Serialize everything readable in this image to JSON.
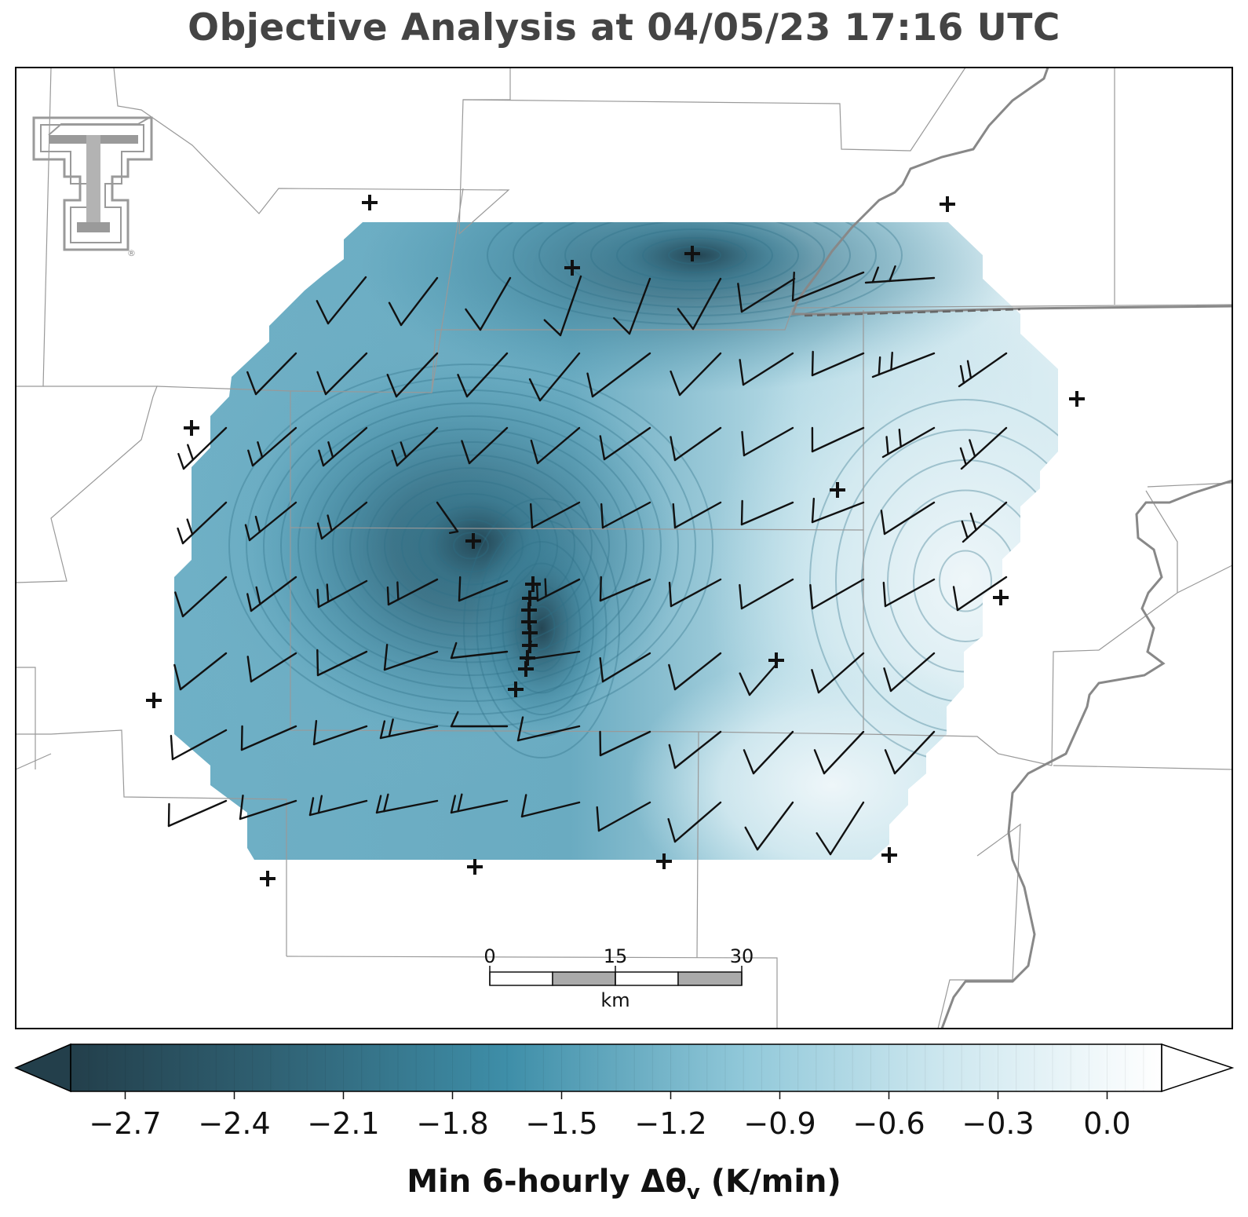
{
  "title": "Objective Analysis at 04/05/23 17:16 UTC",
  "logo": {
    "name": "texas-tech-double-t-logo",
    "mark": "®"
  },
  "colorbar": {
    "label_main": "Min 6-hourly Δθ",
    "label_sub": "v",
    "label_unit": " (K/min)",
    "ticks": [
      "−2.7",
      "−2.4",
      "−2.1",
      "−1.8",
      "−1.5",
      "−1.2",
      "−0.9",
      "−0.6",
      "−0.3",
      "0.0"
    ],
    "min": -2.85,
    "max": 0.15,
    "extend": "both",
    "colors": [
      "#233f4b",
      "#3e8ea8",
      "#9ccfde",
      "#ffffff"
    ]
  },
  "scale_bar": {
    "labels": [
      "0",
      "15",
      "30"
    ],
    "unit": "km"
  },
  "colors": {
    "state_border": "#888888",
    "county_border": "#999999",
    "frame": "#000000"
  }
}
